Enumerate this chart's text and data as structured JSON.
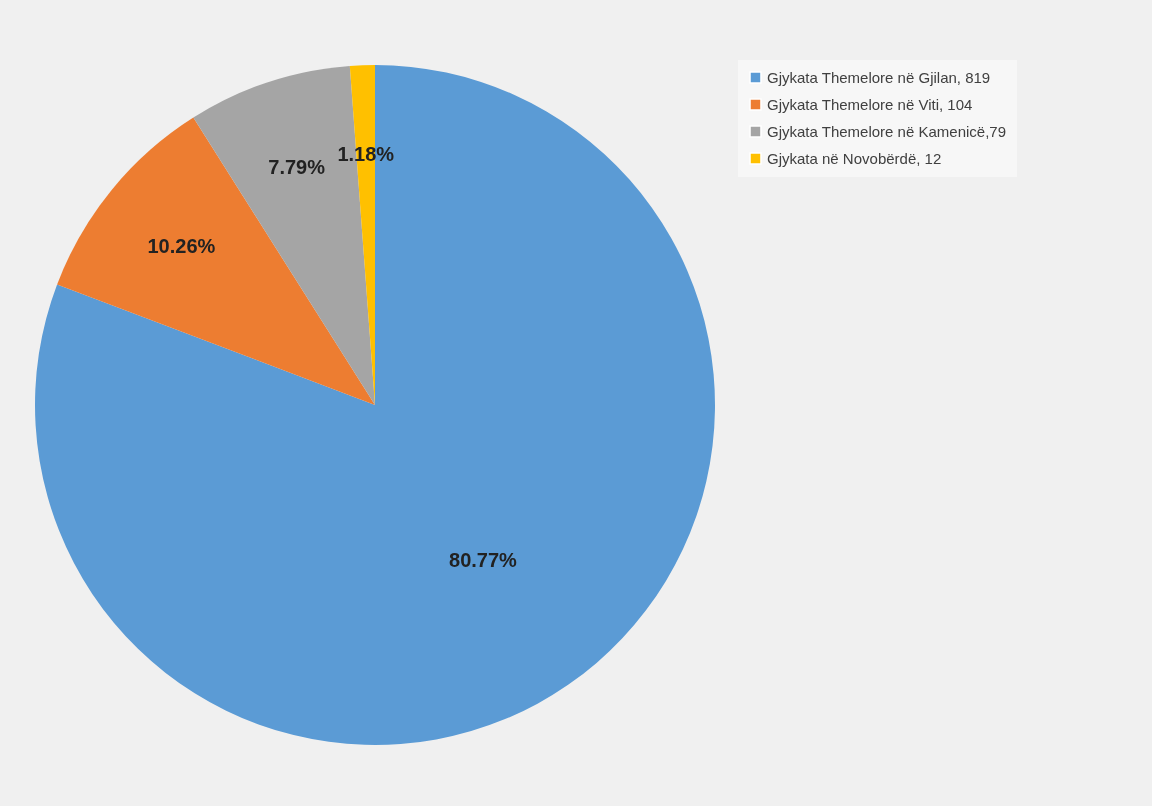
{
  "chart_data": {
    "type": "pie",
    "categories": [
      "Gjykata Themelore në Gjilan, 819",
      "Gjykata Themelore në Viti, 104",
      "Gjykata Themelore në Kamenicë,79",
      "Gjykata në Novobërdë, 12"
    ],
    "values": [
      80.77,
      10.26,
      7.79,
      1.18
    ],
    "colors": [
      "#5b9bd5",
      "#ed7d31",
      "#a5a5a5",
      "#ffc000"
    ],
    "value_labels": [
      "80.77%",
      "10.26%",
      "7.79%",
      "1.18%"
    ],
    "legend": "right"
  }
}
